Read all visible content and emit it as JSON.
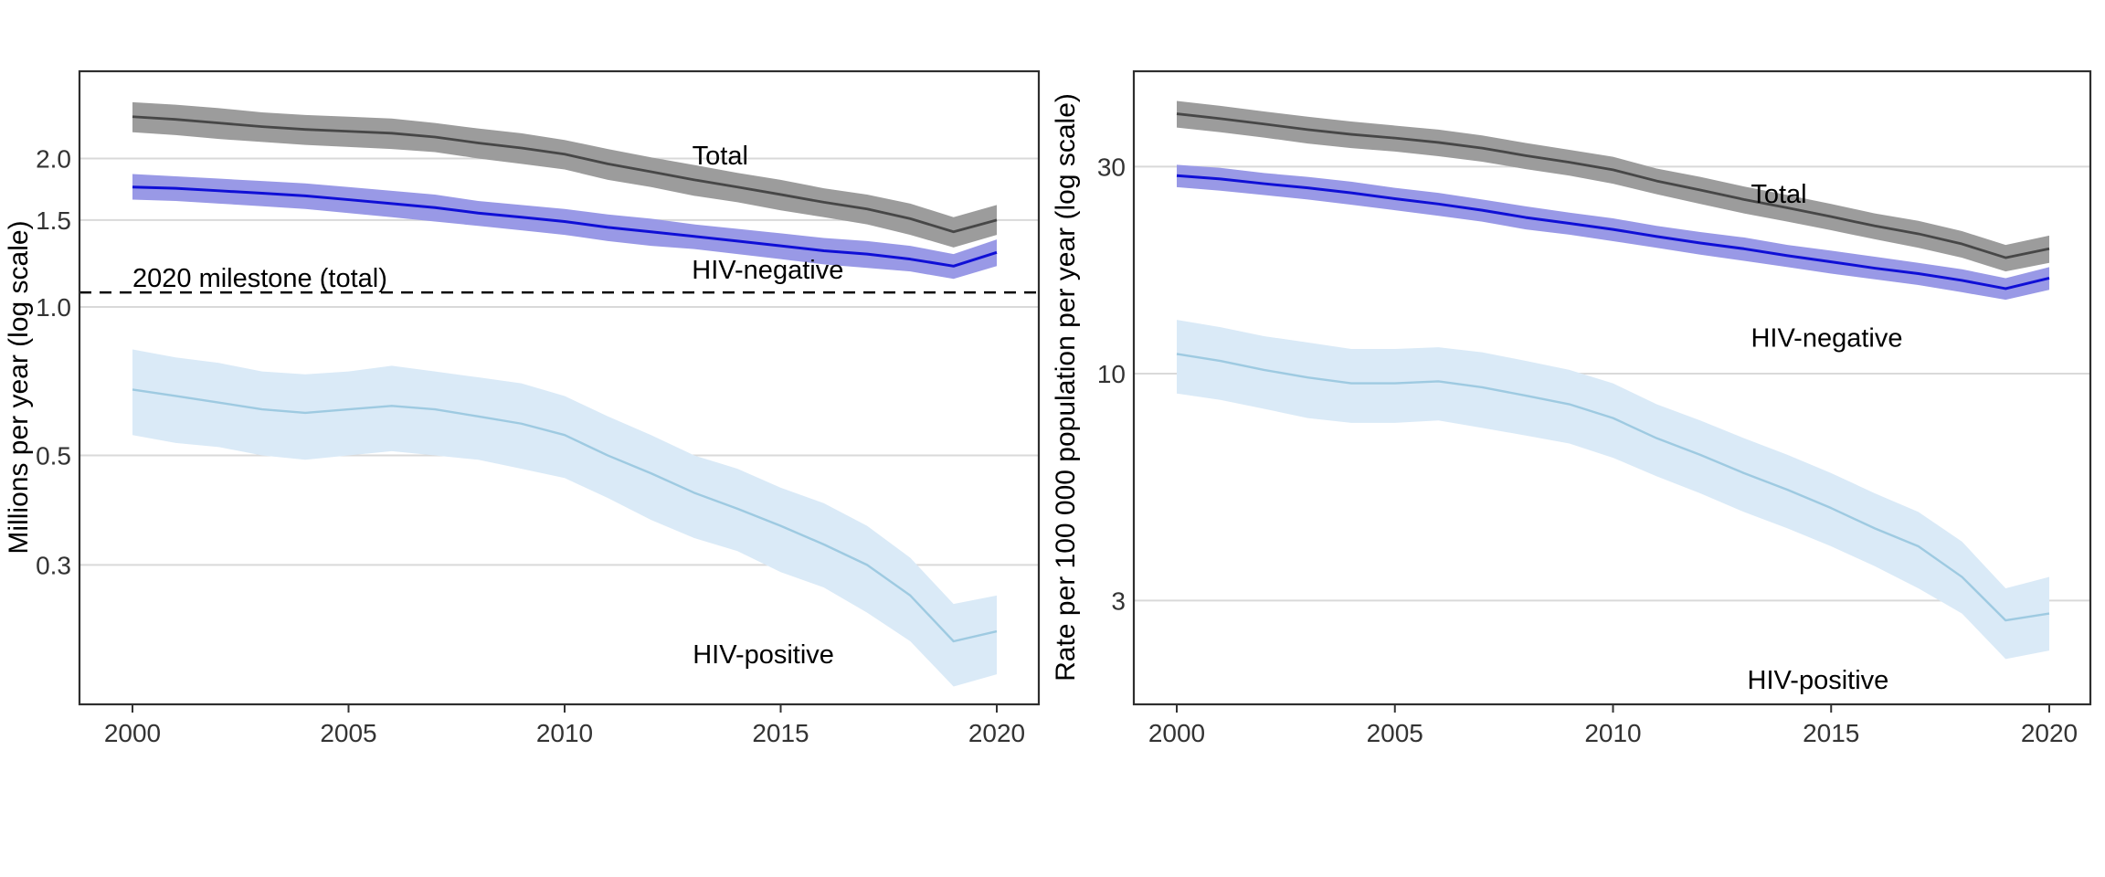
{
  "figure": {
    "background": "#ffffff",
    "grid_color": "#d9d9d9",
    "border_color": "#2e2e2e",
    "tick_color": "#333333"
  },
  "chart_data": [
    {
      "type": "line",
      "title": "",
      "xlabel": "",
      "ylabel": "Millions per year (log scale)",
      "yscale": "log",
      "grid": "horizontal-only",
      "legend": "none (direct labels)",
      "x": [
        2000,
        2001,
        2002,
        2003,
        2004,
        2005,
        2006,
        2007,
        2008,
        2009,
        2010,
        2011,
        2012,
        2013,
        2014,
        2015,
        2016,
        2017,
        2018,
        2019,
        2020
      ],
      "xticks": [
        2000,
        2005,
        2010,
        2015,
        2020
      ],
      "yticks": [
        2.0,
        1.5,
        1.0,
        0.5,
        0.3
      ],
      "ytick_labels": [
        "2.0",
        "1.5",
        "1.0",
        "0.5",
        "0.3"
      ],
      "ylim": [
        0.16,
        2.95
      ],
      "series": [
        {
          "name": "Total",
          "line_color": "#474747",
          "band_color": "#9c9c9c",
          "values": [
            2.43,
            2.4,
            2.36,
            2.32,
            2.29,
            2.27,
            2.25,
            2.21,
            2.15,
            2.1,
            2.04,
            1.95,
            1.88,
            1.81,
            1.75,
            1.69,
            1.63,
            1.58,
            1.51,
            1.42,
            1.5
          ],
          "lo": [
            2.26,
            2.23,
            2.19,
            2.16,
            2.13,
            2.11,
            2.09,
            2.06,
            2.0,
            1.95,
            1.9,
            1.81,
            1.75,
            1.68,
            1.63,
            1.57,
            1.52,
            1.47,
            1.4,
            1.32,
            1.4
          ],
          "hi": [
            2.6,
            2.57,
            2.53,
            2.48,
            2.45,
            2.43,
            2.41,
            2.36,
            2.3,
            2.25,
            2.18,
            2.09,
            2.01,
            1.94,
            1.87,
            1.81,
            1.74,
            1.69,
            1.62,
            1.52,
            1.61
          ]
        },
        {
          "name": "HIV-negative",
          "line_color": "#0f0fd6",
          "band_color": "#9999e6",
          "values": [
            1.75,
            1.74,
            1.72,
            1.7,
            1.68,
            1.65,
            1.62,
            1.59,
            1.55,
            1.52,
            1.49,
            1.45,
            1.42,
            1.39,
            1.36,
            1.33,
            1.3,
            1.28,
            1.25,
            1.21,
            1.29
          ],
          "lo": [
            1.65,
            1.64,
            1.62,
            1.6,
            1.58,
            1.55,
            1.52,
            1.49,
            1.46,
            1.43,
            1.4,
            1.36,
            1.33,
            1.31,
            1.28,
            1.25,
            1.22,
            1.2,
            1.18,
            1.14,
            1.21
          ],
          "hi": [
            1.86,
            1.84,
            1.82,
            1.8,
            1.78,
            1.75,
            1.72,
            1.69,
            1.64,
            1.61,
            1.58,
            1.54,
            1.51,
            1.47,
            1.44,
            1.41,
            1.38,
            1.36,
            1.33,
            1.28,
            1.37
          ]
        },
        {
          "name": "HIV-positive",
          "line_color": "#9ecae1",
          "band_color": "#daeaf7",
          "values": [
            0.68,
            0.66,
            0.64,
            0.62,
            0.61,
            0.62,
            0.63,
            0.62,
            0.6,
            0.58,
            0.55,
            0.5,
            0.46,
            0.42,
            0.39,
            0.36,
            0.33,
            0.3,
            0.26,
            0.21,
            0.22
          ],
          "lo": [
            0.55,
            0.53,
            0.52,
            0.5,
            0.49,
            0.5,
            0.51,
            0.5,
            0.49,
            0.47,
            0.45,
            0.41,
            0.37,
            0.34,
            0.32,
            0.29,
            0.27,
            0.24,
            0.21,
            0.17,
            0.18
          ],
          "hi": [
            0.82,
            0.79,
            0.77,
            0.74,
            0.73,
            0.74,
            0.76,
            0.74,
            0.72,
            0.7,
            0.66,
            0.6,
            0.55,
            0.5,
            0.47,
            0.43,
            0.4,
            0.36,
            0.31,
            0.25,
            0.26
          ]
        }
      ],
      "reference_line": {
        "label": "2020 milestone (total)",
        "value": 1.07,
        "style": "dashed",
        "color": "#000000"
      },
      "annotations": [
        {
          "text": "Total",
          "year": 2013.6,
          "value": 2.03,
          "anchor": "middle"
        },
        {
          "text": "HIV-negative",
          "year": 2014.7,
          "value": 1.19,
          "anchor": "middle"
        },
        {
          "text": "HIV-positive",
          "year": 2014.6,
          "value": 0.198,
          "anchor": "middle"
        },
        {
          "text": "2020 milestone (total)",
          "year": 2000,
          "value": 1.145,
          "anchor": "start"
        }
      ]
    },
    {
      "type": "line",
      "title": "",
      "xlabel": "",
      "ylabel": "Rate per 100 000 population per year (log scale)",
      "yscale": "log",
      "grid": "horizontal-only",
      "legend": "none (direct labels)",
      "x": [
        2000,
        2001,
        2002,
        2003,
        2004,
        2005,
        2006,
        2007,
        2008,
        2009,
        2010,
        2011,
        2012,
        2013,
        2014,
        2015,
        2016,
        2017,
        2018,
        2019,
        2020
      ],
      "xticks": [
        2000,
        2005,
        2010,
        2015,
        2020
      ],
      "yticks": [
        30,
        10,
        3
      ],
      "ytick_labels": [
        "30",
        "10",
        "3"
      ],
      "ylim": [
        2.0,
        48
      ],
      "series": [
        {
          "name": "Total",
          "line_color": "#474747",
          "band_color": "#9c9c9c",
          "values": [
            39.7,
            38.7,
            37.6,
            36.5,
            35.6,
            34.9,
            34.1,
            33.1,
            31.8,
            30.7,
            29.5,
            27.8,
            26.5,
            25.2,
            24.1,
            23.0,
            21.9,
            21.0,
            19.9,
            18.5,
            19.4
          ],
          "lo": [
            36.9,
            36.0,
            35.0,
            33.9,
            33.1,
            32.5,
            31.7,
            30.8,
            29.6,
            28.6,
            27.4,
            25.9,
            24.6,
            23.4,
            22.4,
            21.4,
            20.4,
            19.5,
            18.5,
            17.2,
            18.0
          ],
          "hi": [
            42.5,
            41.4,
            40.2,
            39.1,
            38.1,
            37.3,
            36.5,
            35.4,
            34.0,
            32.8,
            31.6,
            29.7,
            28.4,
            27.0,
            25.8,
            24.6,
            23.4,
            22.5,
            21.3,
            19.8,
            20.8
          ]
        },
        {
          "name": "HIV-negative",
          "line_color": "#0f0fd6",
          "band_color": "#9999e6",
          "values": [
            28.6,
            28.1,
            27.4,
            26.8,
            26.1,
            25.3,
            24.6,
            23.8,
            22.9,
            22.2,
            21.5,
            20.7,
            20.0,
            19.4,
            18.7,
            18.1,
            17.5,
            17.0,
            16.4,
            15.7,
            16.6
          ],
          "lo": [
            26.9,
            26.4,
            25.8,
            25.2,
            24.5,
            23.8,
            23.1,
            22.4,
            21.5,
            20.9,
            20.2,
            19.5,
            18.8,
            18.2,
            17.6,
            17.0,
            16.5,
            16.0,
            15.4,
            14.8,
            15.6
          ],
          "hi": [
            30.3,
            29.8,
            29.0,
            28.4,
            27.7,
            26.8,
            26.1,
            25.2,
            24.3,
            23.5,
            22.8,
            21.9,
            21.2,
            20.6,
            19.8,
            19.2,
            18.6,
            18.0,
            17.4,
            16.6,
            17.6
          ]
        },
        {
          "name": "HIV-positive",
          "line_color": "#9ecae1",
          "band_color": "#daeaf7",
          "values": [
            11.1,
            10.7,
            10.2,
            9.8,
            9.5,
            9.5,
            9.6,
            9.3,
            8.9,
            8.5,
            7.9,
            7.1,
            6.5,
            5.9,
            5.4,
            4.9,
            4.4,
            4.0,
            3.4,
            2.7,
            2.8
          ],
          "lo": [
            9.0,
            8.7,
            8.3,
            7.9,
            7.7,
            7.7,
            7.8,
            7.5,
            7.2,
            6.9,
            6.4,
            5.8,
            5.3,
            4.8,
            4.4,
            4.0,
            3.6,
            3.2,
            2.8,
            2.2,
            2.3
          ],
          "hi": [
            13.3,
            12.8,
            12.2,
            11.8,
            11.4,
            11.4,
            11.5,
            11.2,
            10.7,
            10.2,
            9.5,
            8.5,
            7.8,
            7.1,
            6.5,
            5.9,
            5.3,
            4.8,
            4.1,
            3.2,
            3.4
          ]
        }
      ],
      "annotations": [
        {
          "text": "Total",
          "year": 2013.8,
          "value": 26.0,
          "anchor": "middle"
        },
        {
          "text": "HIV-negative",
          "year": 2014.9,
          "value": 12.1,
          "anchor": "middle"
        },
        {
          "text": "HIV-positive",
          "year": 2014.7,
          "value": 1.97,
          "anchor": "middle"
        }
      ]
    }
  ]
}
